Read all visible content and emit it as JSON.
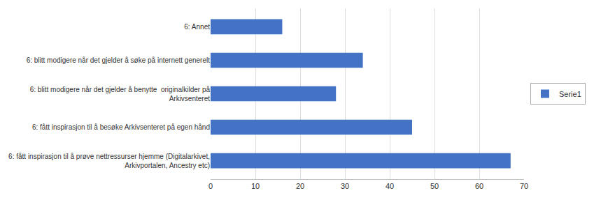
{
  "chart_data": {
    "type": "bar",
    "orientation": "horizontal",
    "categories": [
      "6: fått inspirasjon til å prøve nettressurser hjemme (Digitalarkivet,\nArkivportalen, Ancestry etc)",
      "6: fått inspirasjon til å besøke Arkivsenteret på egen hånd",
      "6: blitt modigere når det gjelder å benytte  originalkilder på\nArkivsenteret",
      "6: blitt modigere når det gjelder å søke på internett generelt",
      "6: Annet"
    ],
    "series": [
      {
        "name": "Serie1",
        "color": "#4472C4",
        "values": [
          67,
          45,
          28,
          34,
          16
        ]
      }
    ],
    "xlim": [
      0,
      70
    ],
    "xticks": [
      0,
      10,
      20,
      30,
      40,
      50,
      60,
      70
    ],
    "grid": true,
    "legend": "right"
  }
}
